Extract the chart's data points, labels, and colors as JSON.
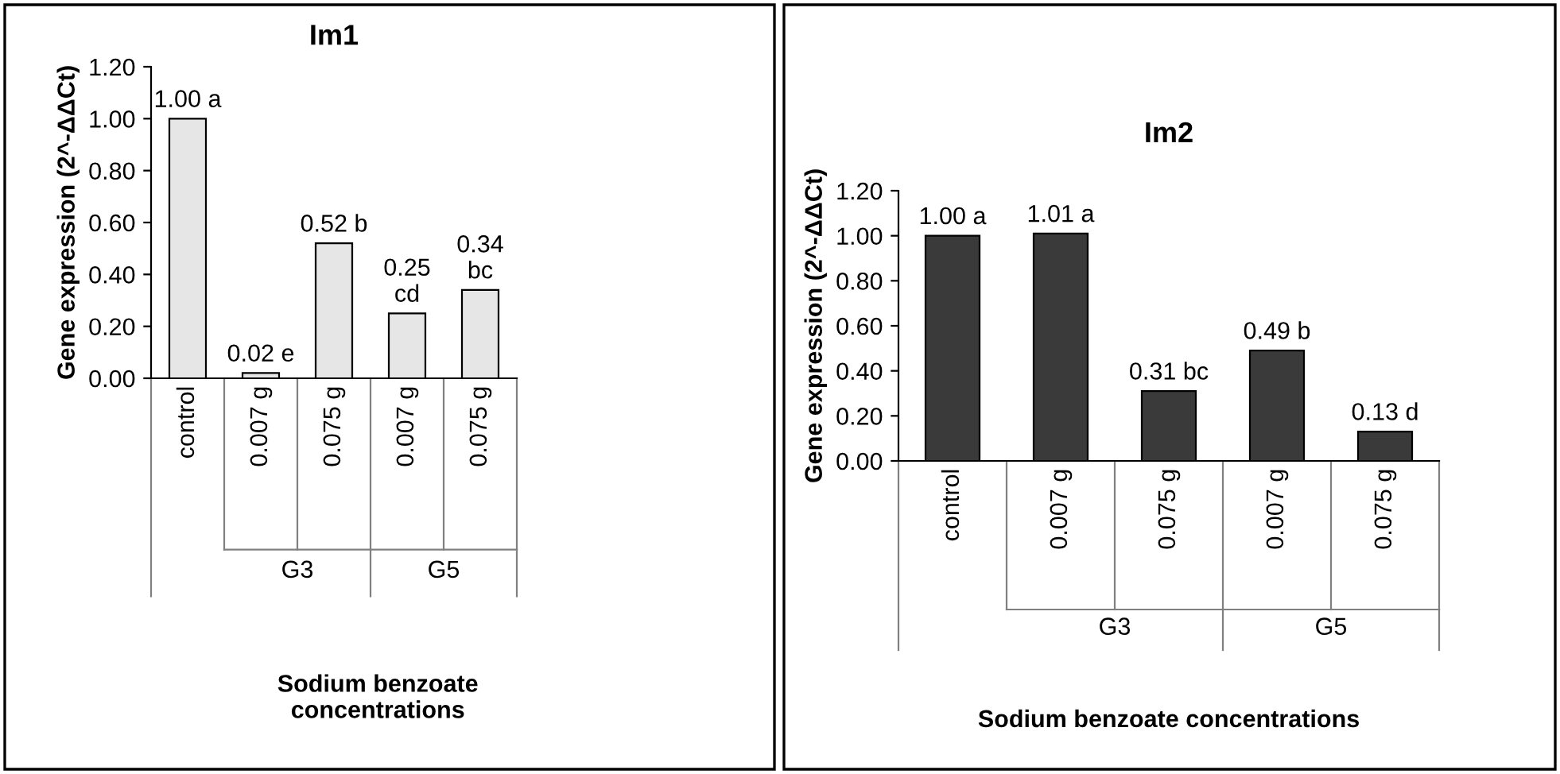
{
  "chart_data": [
    {
      "type": "bar",
      "title": "Im1",
      "xlabel": "Sodium benzoate\nconcentrations",
      "ylabel": "Gene expression (2^-ΔΔCt)",
      "categories": [
        "control",
        "0.007 g",
        "0.075 g",
        "0.007 g",
        "0.075 g"
      ],
      "values": [
        1.0,
        0.02,
        0.52,
        0.25,
        0.34
      ],
      "value_labels": [
        "1.00 a",
        "0.02 e",
        "0.52 b",
        "0.25\ncd",
        "0.34\nbc"
      ],
      "color": "#e6e6e6",
      "ylim": [
        0,
        1.2
      ],
      "yticks": [
        {
          "value": 0,
          "label": "0.00"
        },
        {
          "value": 0.2,
          "label": "0.20"
        },
        {
          "value": 0.4,
          "label": "0.40"
        },
        {
          "value": 0.6,
          "label": "0.60"
        },
        {
          "value": 0.8,
          "label": "0.80"
        },
        {
          "value": 1.0,
          "label": "1.00"
        },
        {
          "value": 1.2,
          "label": "1.20"
        }
      ],
      "annotations": [
        "G3",
        "G5"
      ],
      "grid": false
    },
    {
      "type": "bar",
      "title": "Im2",
      "xlabel": "Sodium benzoate concentrations",
      "ylabel": "Gene expression (2^-ΔΔCt)",
      "categories": [
        "control",
        "0.007 g",
        "0.075 g",
        "0.007 g",
        "0.075 g"
      ],
      "values": [
        1.0,
        1.01,
        0.31,
        0.49,
        0.13
      ],
      "value_labels": [
        "1.00 a",
        "1.01 a",
        "0.31 bc",
        "0.49 b",
        "0.13 d"
      ],
      "color": "#3a3a3a",
      "ylim": [
        0,
        1.2
      ],
      "yticks": [
        {
          "value": 0,
          "label": "0.00"
        },
        {
          "value": 0.2,
          "label": "0.20"
        },
        {
          "value": 0.4,
          "label": "0.40"
        },
        {
          "value": 0.6,
          "label": "0.60"
        },
        {
          "value": 0.8,
          "label": "0.80"
        },
        {
          "value": 1.0,
          "label": "1.00"
        },
        {
          "value": 1.2,
          "label": "1.20"
        }
      ],
      "annotations": [
        "G3",
        "G5"
      ],
      "grid": false
    }
  ]
}
